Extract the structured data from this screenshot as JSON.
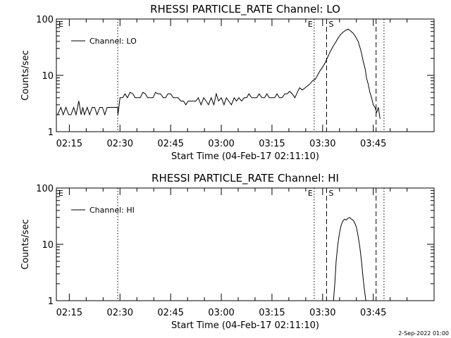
{
  "chart_data": [
    {
      "type": "line",
      "title": "RHESSI PARTICLE_RATE Channel: LO",
      "xlabel": "Start Time (04-Feb-17 02:11:10)",
      "ylabel": "Counts/sec",
      "yscale": "log",
      "ylim": [
        1,
        100
      ],
      "xlim_min": [
        131.17,
        243
      ],
      "xticks": [
        "02:15",
        "02:30",
        "02:45",
        "03:00",
        "03:15",
        "03:30",
        "03:45"
      ],
      "xtick_min": [
        135,
        150,
        165,
        180,
        195,
        210,
        225
      ],
      "yticks": [
        "1",
        "10",
        "100"
      ],
      "ytick_vals": [
        1,
        10,
        100
      ],
      "series": [
        {
          "name": "Channel: LO",
          "x_min": [
            131.5,
            132.5,
            133.2,
            134.0,
            134.8,
            135.5,
            136.3,
            137.0,
            137.8,
            138.5,
            139.0,
            139.5,
            140.3,
            141.0,
            141.8,
            142.5,
            143.2,
            144.0,
            144.8,
            145.5,
            146.2,
            147.0,
            147.8,
            148.5,
            149.0,
            149.3,
            149.4,
            150.0,
            150.8,
            151.5,
            152.2,
            153.0,
            153.8,
            154.5,
            155.2,
            156.0,
            156.8,
            157.5,
            158.2,
            159.0,
            159.8,
            160.5,
            161.2,
            162.0,
            162.8,
            163.5,
            164.2,
            165.0,
            165.8,
            166.5,
            167.2,
            168.0,
            168.8,
            169.5,
            170.2,
            171.0,
            171.8,
            172.5,
            173.2,
            174.0,
            174.8,
            175.5,
            176.2,
            177.0,
            177.8,
            178.5,
            179.2,
            180.0,
            180.8,
            181.5,
            182.2,
            183.0,
            183.8,
            184.5,
            185.2,
            186.0,
            186.8,
            187.5,
            188.2,
            189.0,
            189.8,
            190.5,
            191.2,
            192.0,
            192.8,
            193.5,
            194.2,
            195.0,
            195.8,
            196.5,
            197.2,
            198.0,
            198.8,
            199.5,
            200.2,
            201.0,
            201.8,
            202.5,
            203.2,
            204.0,
            204.8,
            205.5,
            206.2,
            207.0,
            207.8,
            208.5,
            209.2,
            210.0,
            210.8,
            211.5,
            212.2,
            213.0,
            213.8,
            214.5,
            215.2,
            216.0,
            216.8,
            217.5,
            218.2,
            219.0,
            219.8,
            220.5,
            221.0,
            221.5,
            222.0,
            222.6,
            223.0,
            223.5,
            224.0,
            224.5,
            225.0,
            225.5,
            226.0,
            226.5,
            227.0
          ],
          "y": [
            2,
            2.7,
            2,
            2.7,
            2,
            2,
            2.7,
            2,
            3.5,
            2,
            2.7,
            2,
            2.7,
            2,
            2.7,
            2.7,
            2,
            2.7,
            2.7,
            2,
            2.7,
            2.7,
            2.7,
            2.7,
            2.7,
            2.7,
            2,
            4,
            4,
            4.7,
            4,
            5,
            4.7,
            4,
            4,
            4,
            5,
            4.7,
            4,
            4,
            4,
            5,
            4.7,
            4.7,
            4,
            4,
            4.7,
            4.7,
            4,
            4,
            4,
            3.5,
            3.5,
            3,
            3.5,
            3.5,
            3.5,
            3.5,
            4,
            3,
            4,
            3.5,
            3,
            4,
            3,
            4.7,
            3.5,
            4,
            3,
            4,
            3.5,
            3,
            4,
            3.5,
            4,
            3.5,
            4,
            4,
            4.7,
            4,
            4,
            4,
            4.7,
            4,
            4,
            4.7,
            4,
            4,
            4,
            4.7,
            4,
            4,
            4.7,
            4.7,
            5.2,
            4.7,
            4,
            5,
            6,
            5.5,
            6,
            6.5,
            7,
            8,
            8.5,
            10,
            12,
            14,
            17,
            21,
            26,
            32,
            38,
            45,
            52,
            58,
            63,
            66,
            62,
            56,
            48,
            40,
            32,
            25,
            18,
            13,
            9,
            7,
            5,
            4,
            3,
            2.7,
            2.2,
            2.7,
            1.7,
            2.7,
            2.7,
            2.7
          ]
        }
      ],
      "vlines": [
        {
          "label": "",
          "style": "dotted",
          "x_min": 149.33
        },
        {
          "label": "E",
          "style": "dotted",
          "x_min": 207.5
        },
        {
          "label": "S",
          "style": "dashed",
          "x_min": 211.17
        },
        {
          "label": "",
          "style": "dashed",
          "x_min": 225.83
        },
        {
          "label": "",
          "style": "dotted",
          "x_min": 228.17
        }
      ],
      "corner_label": "E"
    },
    {
      "type": "line",
      "title": "RHESSI PARTICLE_RATE Channel: HI",
      "xlabel": "Start Time (04-Feb-17 02:11:10)",
      "ylabel": "Counts/sec",
      "yscale": "log",
      "ylim": [
        1,
        100
      ],
      "xlim_min": [
        131.17,
        243
      ],
      "xticks": [
        "02:15",
        "02:30",
        "02:45",
        "03:00",
        "03:15",
        "03:30",
        "03:45"
      ],
      "xtick_min": [
        135,
        150,
        165,
        180,
        195,
        210,
        225
      ],
      "yticks": [
        "1",
        "10",
        "100"
      ],
      "ytick_vals": [
        1,
        10,
        100
      ],
      "series": [
        {
          "name": "Channel: HI",
          "x_min": [
            213.2,
            213.6,
            214.0,
            214.5,
            215.0,
            215.5,
            216.0,
            216.5,
            217.0,
            217.5,
            218.0,
            218.5,
            219.0,
            219.5,
            220.0,
            220.5,
            221.0,
            221.5,
            222.0,
            222.4,
            222.8
          ],
          "y": [
            1,
            2,
            5,
            10,
            16,
            22,
            26,
            28,
            27,
            29,
            30,
            28,
            27,
            24,
            20,
            14,
            9,
            5,
            2.5,
            1.5,
            1
          ]
        }
      ],
      "vlines": [
        {
          "label": "",
          "style": "dotted",
          "x_min": 149.33
        },
        {
          "label": "E",
          "style": "dotted",
          "x_min": 207.5
        },
        {
          "label": "S",
          "style": "dashed",
          "x_min": 211.17
        },
        {
          "label": "",
          "style": "dashed",
          "x_min": 225.83
        },
        {
          "label": "",
          "style": "dotted",
          "x_min": 228.17
        }
      ],
      "corner_label": "E"
    }
  ],
  "footer": {
    "date_stamp": "2-Sep-2022 01:00"
  }
}
